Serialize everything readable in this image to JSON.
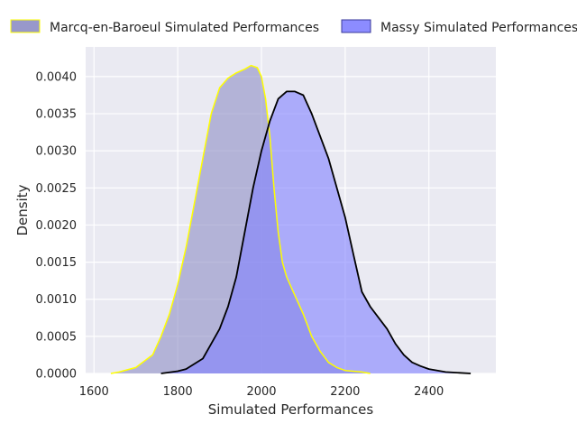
{
  "chart_data": {
    "type": "area",
    "title": "",
    "xlabel": "Simulated Performances",
    "ylabel": "Density",
    "xlim": [
      1580,
      2560
    ],
    "ylim": [
      0,
      0.0044
    ],
    "x_ticks": [
      1600,
      1800,
      2000,
      2200,
      2400
    ],
    "y_ticks": [
      0,
      0.0005,
      0.001,
      0.0015,
      0.002,
      0.0025,
      0.003,
      0.0035,
      0.004
    ],
    "y_tick_labels": [
      "0.0000",
      "0.0005",
      "0.0010",
      "0.0015",
      "0.0020",
      "0.0025",
      "0.0030",
      "0.0035",
      "0.0040"
    ],
    "grid": true,
    "legend_position": "top",
    "series": [
      {
        "name": "Marcq-en-Baroeul Simulated Performances",
        "fill_color": "#8d8dc4",
        "line_color": "#ffff00",
        "points": [
          [
            1640,
            0
          ],
          [
            1660,
            2e-05
          ],
          [
            1700,
            8e-05
          ],
          [
            1740,
            0.00025
          ],
          [
            1760,
            0.0005
          ],
          [
            1780,
            0.0008
          ],
          [
            1800,
            0.0012
          ],
          [
            1820,
            0.0017
          ],
          [
            1840,
            0.0023
          ],
          [
            1860,
            0.0029
          ],
          [
            1880,
            0.0035
          ],
          [
            1900,
            0.00385
          ],
          [
            1920,
            0.00398
          ],
          [
            1940,
            0.00405
          ],
          [
            1960,
            0.0041
          ],
          [
            1975,
            0.00415
          ],
          [
            1990,
            0.00412
          ],
          [
            2000,
            0.004
          ],
          [
            2010,
            0.0037
          ],
          [
            2020,
            0.0032
          ],
          [
            2030,
            0.0025
          ],
          [
            2040,
            0.0019
          ],
          [
            2050,
            0.0015
          ],
          [
            2060,
            0.0013
          ],
          [
            2080,
            0.00105
          ],
          [
            2100,
            0.0008
          ],
          [
            2120,
            0.0005
          ],
          [
            2140,
            0.0003
          ],
          [
            2160,
            0.00015
          ],
          [
            2180,
            8e-05
          ],
          [
            2200,
            4e-05
          ],
          [
            2240,
            2e-05
          ],
          [
            2260,
            0
          ]
        ]
      },
      {
        "name": "Massy Simulated Performances",
        "fill_color": "#8080ff",
        "line_color": "#000000",
        "points": [
          [
            1760,
            0
          ],
          [
            1800,
            3e-05
          ],
          [
            1820,
            6e-05
          ],
          [
            1860,
            0.0002
          ],
          [
            1880,
            0.0004
          ],
          [
            1900,
            0.0006
          ],
          [
            1920,
            0.0009
          ],
          [
            1940,
            0.0013
          ],
          [
            1960,
            0.0019
          ],
          [
            1980,
            0.0025
          ],
          [
            2000,
            0.003
          ],
          [
            2020,
            0.0034
          ],
          [
            2040,
            0.0037
          ],
          [
            2060,
            0.0038
          ],
          [
            2080,
            0.0038
          ],
          [
            2100,
            0.00375
          ],
          [
            2120,
            0.0035
          ],
          [
            2140,
            0.0032
          ],
          [
            2160,
            0.0029
          ],
          [
            2180,
            0.0025
          ],
          [
            2200,
            0.0021
          ],
          [
            2220,
            0.0016
          ],
          [
            2240,
            0.0011
          ],
          [
            2260,
            0.0009
          ],
          [
            2280,
            0.00075
          ],
          [
            2300,
            0.0006
          ],
          [
            2320,
            0.0004
          ],
          [
            2340,
            0.00025
          ],
          [
            2360,
            0.00015
          ],
          [
            2380,
            0.0001
          ],
          [
            2400,
            6e-05
          ],
          [
            2440,
            2e-05
          ],
          [
            2500,
            0
          ]
        ]
      }
    ]
  }
}
